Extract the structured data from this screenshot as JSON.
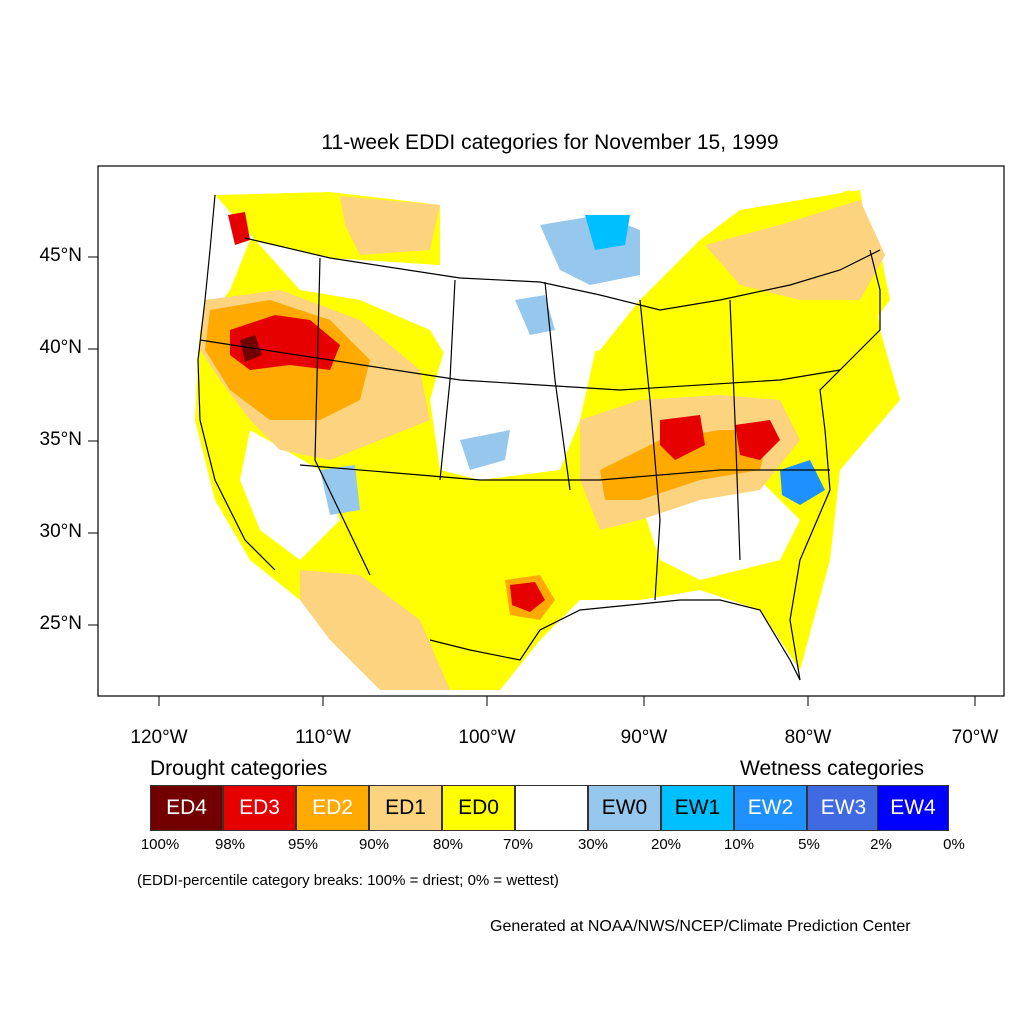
{
  "title": "11-week EDDI categories for November 15, 1999",
  "axes": {
    "lat_labels": [
      "45°N",
      "40°N",
      "35°N",
      "30°N",
      "25°N"
    ],
    "lon_labels": [
      "120°W",
      "110°W",
      "100°W",
      "90°W",
      "80°W",
      "70°W"
    ]
  },
  "legend": {
    "drought_heading": "Drought categories",
    "wetness_heading": "Wetness categories",
    "categories": [
      {
        "label": "ED4",
        "color": "#730000",
        "text_color": "#ffffff"
      },
      {
        "label": "ED3",
        "color": "#e60000",
        "text_color": "#ffffff"
      },
      {
        "label": "ED2",
        "color": "#ffaa00",
        "text_color": "#ffffff"
      },
      {
        "label": "ED1",
        "color": "#fcd37f",
        "text_color": "#000000"
      },
      {
        "label": "ED0",
        "color": "#ffff00",
        "text_color": "#000000"
      },
      {
        "label": "",
        "color": "#ffffff",
        "text_color": "#000000"
      },
      {
        "label": "EW0",
        "color": "#96c8ee",
        "text_color": "#000000"
      },
      {
        "label": "EW1",
        "color": "#00bfff",
        "text_color": "#000000"
      },
      {
        "label": "EW2",
        "color": "#1e90ff",
        "text_color": "#ffffff"
      },
      {
        "label": "EW3",
        "color": "#4169e1",
        "text_color": "#ffffff"
      },
      {
        "label": "EW4",
        "color": "#0000ff",
        "text_color": "#ffffff"
      }
    ],
    "percent_breaks": [
      "100%",
      "98%",
      "95%",
      "90%",
      "80%",
      "70%",
      "30%",
      "20%",
      "10%",
      "5%",
      "2%",
      "0%"
    ]
  },
  "note": "(EDDI-percentile category breaks: 100% = driest; 0% = wettest)",
  "credit": "Generated at NOAA/NWS/NCEP/Climate Prediction Center"
}
